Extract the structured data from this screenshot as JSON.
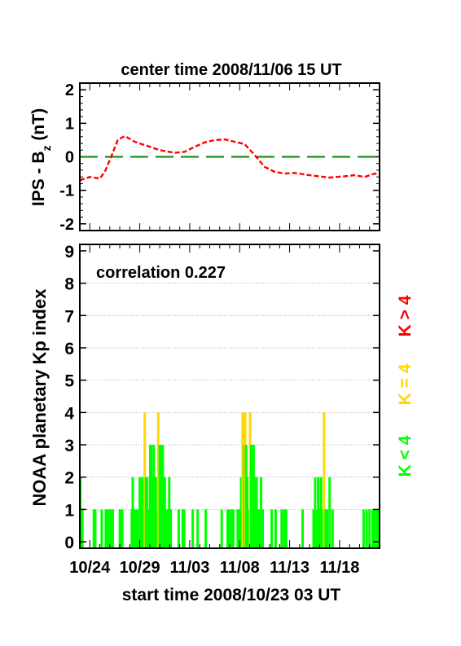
{
  "chart_data": [
    {
      "type": "line",
      "title": "center time 2008/11/06 15 UT",
      "ylabel": "IPS - B",
      "ylabel_sub": "z",
      "ylabel_unit": " (nT)",
      "xlim": [
        0,
        30
      ],
      "ylim": [
        -2.2,
        2.2
      ],
      "yticks": [
        2,
        1,
        0,
        -1,
        -2
      ],
      "zero_line_color": "#008800",
      "series": [
        {
          "color": "#ff0000",
          "style": "dashed",
          "x": [
            0,
            1,
            2,
            2.5,
            3.2,
            3.8,
            4.5,
            5.5,
            6.5,
            8,
            9.5,
            10.5,
            11.5,
            12.5,
            13.5,
            14.5,
            15.5,
            16.5,
            17.5,
            18.5,
            19.5,
            20.5,
            21.5,
            23,
            25,
            26.5,
            27.5,
            28.5,
            29.5,
            30
          ],
          "y": [
            -0.7,
            -0.6,
            -0.65,
            -0.45,
            0.05,
            0.5,
            0.62,
            0.45,
            0.35,
            0.2,
            0.12,
            0.15,
            0.3,
            0.43,
            0.5,
            0.52,
            0.45,
            0.38,
            0.05,
            -0.3,
            -0.45,
            -0.5,
            -0.48,
            -0.55,
            -0.62,
            -0.58,
            -0.55,
            -0.6,
            -0.5,
            -0.52
          ]
        }
      ]
    },
    {
      "type": "bar",
      "ylabel": "NOAA planetary Kp index",
      "annotation": "correlation 0.227",
      "xlabel": "start time 2008/10/23 03 UT",
      "xlim": [
        0,
        30
      ],
      "ylim": [
        -0.2,
        9.2
      ],
      "yticks": [
        9,
        8,
        7,
        6,
        5,
        4,
        3,
        2,
        1,
        0
      ],
      "xticks": [
        {
          "x": 1.0,
          "label": "10/24"
        },
        {
          "x": 6.0,
          "label": "10/29"
        },
        {
          "x": 11.0,
          "label": "11/03"
        },
        {
          "x": 16.0,
          "label": "11/08"
        },
        {
          "x": 21.0,
          "label": "11/13"
        },
        {
          "x": 26.0,
          "label": "11/18"
        }
      ],
      "grid": true,
      "legend": [
        {
          "label": "K > 4",
          "color": "#ff0000"
        },
        {
          "label": "K = 4",
          "color": "#ffd700"
        },
        {
          "label": "K < 4",
          "color": "#00ff00"
        }
      ],
      "bars": [
        [
          0.05,
          2
        ],
        [
          0.25,
          1
        ],
        [
          1.4,
          1
        ],
        [
          1.55,
          1
        ],
        [
          2.2,
          1
        ],
        [
          2.6,
          1
        ],
        [
          2.7,
          1
        ],
        [
          2.9,
          1
        ],
        [
          3.1,
          1
        ],
        [
          3.3,
          1
        ],
        [
          4.0,
          1
        ],
        [
          4.1,
          1
        ],
        [
          4.25,
          1
        ],
        [
          5.2,
          1
        ],
        [
          5.3,
          2
        ],
        [
          5.45,
          1
        ],
        [
          5.55,
          1
        ],
        [
          5.75,
          1
        ],
        [
          6.0,
          2
        ],
        [
          6.15,
          1
        ],
        [
          6.25,
          2
        ],
        [
          6.35,
          2
        ],
        [
          6.5,
          4
        ],
        [
          6.62,
          2
        ],
        [
          6.75,
          2
        ],
        [
          6.9,
          1
        ],
        [
          7.05,
          3
        ],
        [
          7.15,
          3
        ],
        [
          7.25,
          2
        ],
        [
          7.4,
          3
        ],
        [
          7.5,
          2
        ],
        [
          7.65,
          2
        ],
        [
          7.85,
          4
        ],
        [
          8.0,
          3
        ],
        [
          8.1,
          3
        ],
        [
          8.2,
          2
        ],
        [
          8.3,
          3
        ],
        [
          8.4,
          2
        ],
        [
          8.5,
          2
        ],
        [
          8.65,
          1
        ],
        [
          8.8,
          1
        ],
        [
          8.95,
          2
        ],
        [
          9.1,
          1
        ],
        [
          9.9,
          1
        ],
        [
          10.3,
          1
        ],
        [
          10.45,
          1
        ],
        [
          11.3,
          1
        ],
        [
          11.8,
          1
        ],
        [
          12.6,
          1
        ],
        [
          14.2,
          1
        ],
        [
          14.8,
          1
        ],
        [
          14.95,
          1
        ],
        [
          15.2,
          1
        ],
        [
          15.35,
          1
        ],
        [
          15.8,
          1
        ],
        [
          15.95,
          1
        ],
        [
          16.05,
          1
        ],
        [
          16.15,
          2
        ],
        [
          16.3,
          4
        ],
        [
          16.45,
          3
        ],
        [
          16.55,
          4
        ],
        [
          16.65,
          3
        ],
        [
          16.75,
          2
        ],
        [
          16.9,
          1
        ],
        [
          17.05,
          4
        ],
        [
          17.15,
          3
        ],
        [
          17.25,
          1
        ],
        [
          17.4,
          3
        ],
        [
          17.55,
          2
        ],
        [
          17.7,
          2
        ],
        [
          17.85,
          1
        ],
        [
          18.0,
          1
        ],
        [
          18.15,
          2
        ],
        [
          18.3,
          1
        ],
        [
          19.2,
          1
        ],
        [
          19.6,
          1
        ],
        [
          20.2,
          1
        ],
        [
          20.45,
          1
        ],
        [
          20.65,
          1
        ],
        [
          22.3,
          1
        ],
        [
          23.4,
          1
        ],
        [
          23.55,
          2
        ],
        [
          23.7,
          1
        ],
        [
          23.85,
          2
        ],
        [
          24.0,
          1
        ],
        [
          24.15,
          2
        ],
        [
          24.3,
          1
        ],
        [
          24.45,
          4
        ],
        [
          24.6,
          1
        ],
        [
          24.75,
          1
        ],
        [
          25.0,
          2
        ],
        [
          25.3,
          1
        ],
        [
          28.4,
          1
        ],
        [
          28.7,
          1
        ],
        [
          29.0,
          1
        ],
        [
          29.3,
          1
        ],
        [
          29.5,
          1
        ],
        [
          29.7,
          1
        ],
        [
          29.85,
          1
        ]
      ]
    }
  ]
}
